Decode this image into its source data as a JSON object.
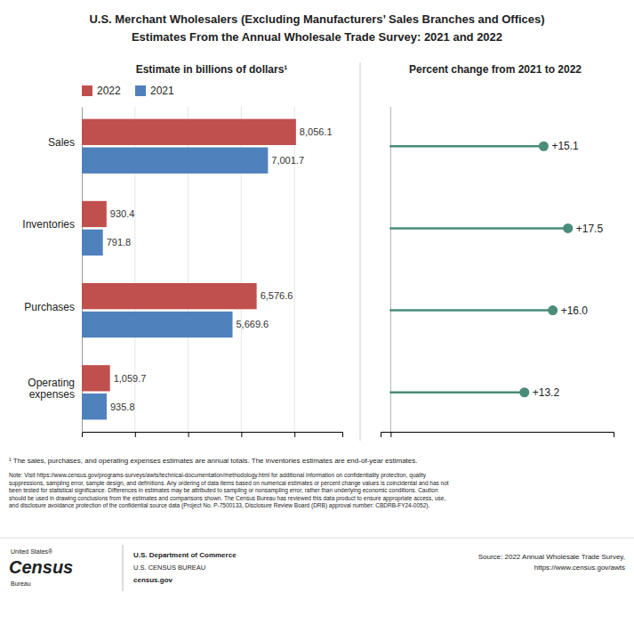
{
  "title": "U.S. Merchant Wholesalers (Excluding Manufacturers’ Sales Branches and Offices)",
  "subtitle": "Estimates From the Annual Wholesale Trade Survey: 2021 and 2022",
  "chart_data": [
    {
      "type": "bar",
      "orientation": "horizontal",
      "title": "Estimate in billions of dollars¹",
      "categories": [
        "Sales",
        "Inventories",
        "Purchases",
        "Operating\nexpenses"
      ],
      "series": [
        {
          "name": "2022",
          "color": "#c0504d",
          "values": [
            8056.1,
            930.4,
            6576.6,
            1059.7
          ],
          "value_labels": [
            "8,056.1",
            "930.4",
            "6,576.6",
            "1,059.7"
          ]
        },
        {
          "name": "2021",
          "color": "#4f81bd",
          "values": [
            7001.7,
            791.8,
            5669.6,
            935.8
          ],
          "value_labels": [
            "7,001.7",
            "791.8",
            "5,669.6",
            "935.8"
          ]
        }
      ],
      "xlim": [
        0,
        9800
      ],
      "xticks": [
        2000,
        4000,
        6000,
        8000
      ],
      "grid": true,
      "legend": "top",
      "data_labels": true,
      "tick_labels": "y"
    },
    {
      "type": "lollipop",
      "orientation": "horizontal",
      "title": "Percent change from 2021 to 2022",
      "values": [
        15.1,
        17.5,
        16.0,
        13.2
      ],
      "value_labels": [
        "+15.1",
        "+17.5",
        "+16.0",
        "+13.2"
      ],
      "color": "#4a8c7a",
      "xlim": [
        -1,
        22
      ],
      "xticks": [
        0
      ],
      "grid": true,
      "data_labels": true,
      "tick_labels": false
    }
  ],
  "annotations": [
    "¹ The sales, purchases, and operating expenses estimates are annual totals. The inventories estimates are end-of-year estimates.",
    "Note: Visit https://www.census.gov/programs-surveys/awts/technical-documentation/methodology.html for additional information on confidentiality protection, quality\nsuppressions, sampling error, sample design, and definitions. Any ordering of data items based on numerical estimates or percent change values is coincidental and has not\nbeen tested for statistical significance. Differences in estimates may be attributed to sampling or nonsampling error, rather than underlying economic conditions. Caution\nshould be used in drawing conclusions from the estimates and comparisons shown. The Census Bureau has reviewed this data product to ensure appropriate access, use,\nand disclosure avoidance protection of the confidential source data (Project No. P-7500133, Disclosure Review Board (DRB) approval number: CBDRB-FY24-0052).",
    "United States®",
    "Census",
    "Bureau",
    "U.S. Department of Commerce",
    "U.S. CENSUS BUREAU",
    "census.gov",
    "Source: 2022 Annual Wholesale Trade Survey,\nhttps://www.census.gov/awts"
  ]
}
